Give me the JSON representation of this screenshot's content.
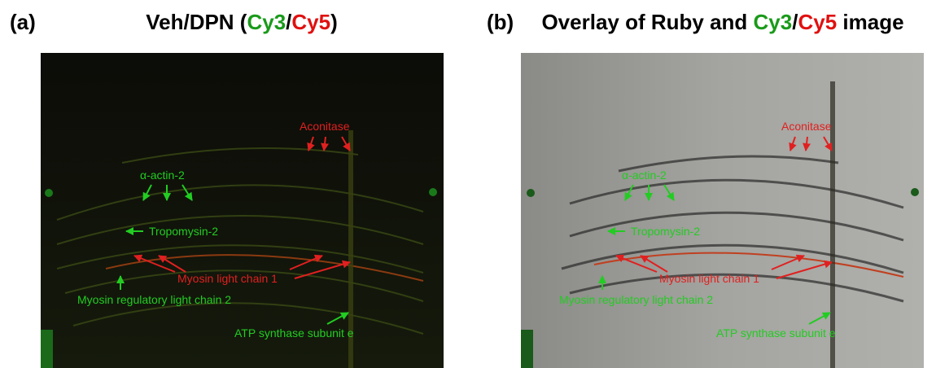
{
  "panels": [
    {
      "label": "(a)",
      "title_parts": [
        {
          "text": "Veh/DPN (",
          "color": "#000000"
        },
        {
          "text": "Cy3",
          "color": "#1a9a1a"
        },
        {
          "text": "/",
          "color": "#000000"
        },
        {
          "text": "Cy5",
          "color": "#e01010"
        },
        {
          "text": ")",
          "color": "#000000"
        }
      ],
      "annotations": [
        {
          "text": "Aconitase",
          "color": "#e02020"
        },
        {
          "text": "α-actin-2",
          "color": "#22cc22"
        },
        {
          "text": "Tropomysin-2",
          "color": "#22cc22"
        },
        {
          "text": "Myosin light chain 1",
          "color": "#e02020"
        },
        {
          "text": "Myosin regulatory light chain 2",
          "color": "#22cc22"
        },
        {
          "text": "ATP synthase subunit e",
          "color": "#22cc22"
        }
      ]
    },
    {
      "label": "(b)",
      "title_parts": [
        {
          "text": "Overlay of Ruby and ",
          "color": "#000000"
        },
        {
          "text": "Cy3",
          "color": "#1a9a1a"
        },
        {
          "text": "/",
          "color": "#000000"
        },
        {
          "text": "Cy5",
          "color": "#e01010"
        },
        {
          "text": " image",
          "color": "#000000"
        }
      ],
      "annotations": [
        {
          "text": "Aconitase",
          "color": "#e02020"
        },
        {
          "text": "α-actin-2",
          "color": "#22cc22"
        },
        {
          "text": "Tropomysin-2",
          "color": "#22cc22"
        },
        {
          "text": "Myosin light chain 1",
          "color": "#e02020"
        },
        {
          "text": "Myosin regulatory light chain 2",
          "color": "#22cc22"
        },
        {
          "text": "ATP synthase subunit e",
          "color": "#22cc22"
        }
      ]
    }
  ]
}
